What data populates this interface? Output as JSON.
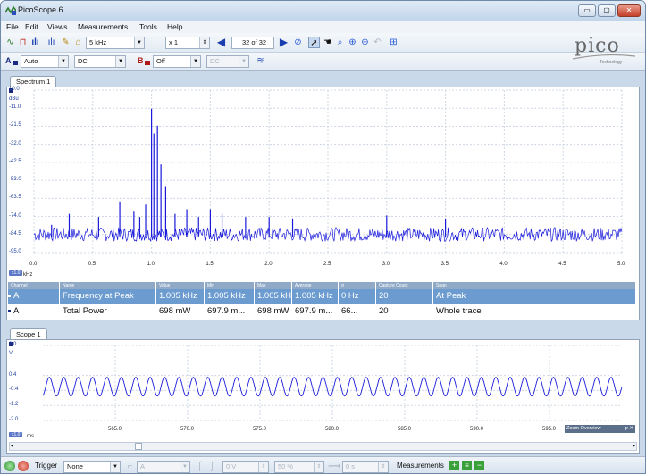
{
  "window": {
    "title": "PicoScope 6",
    "controls": [
      "▭",
      "▢",
      "✕"
    ]
  },
  "menu": [
    "File",
    "Edit",
    "Views",
    "Measurements",
    "Tools",
    "Help"
  ],
  "toolbar": {
    "timebase": "5 kHz",
    "multiplier": "x 1",
    "capture_counter": "32 of 32"
  },
  "channels": {
    "a_label": "A",
    "a_range": "Auto",
    "a_coupling": "DC",
    "b_label": "B",
    "b_range": "Off",
    "b_coupling": "DC"
  },
  "logo": {
    "name": "pico",
    "tagline": "Technology"
  },
  "spectrum": {
    "tab": "Spectrum 1",
    "unit": "dBu",
    "y_ticks": [
      "10.0",
      "-11.0",
      "-21.5",
      "-32.0",
      "-42.5",
      "-53.0",
      "-63.5",
      "-74.0",
      "-84.5",
      "-95.0"
    ],
    "x_ticks": [
      "0.0",
      "0.5",
      "1.0",
      "1.5",
      "2.0",
      "2.5",
      "3.0",
      "3.5",
      "4.0",
      "4.5",
      "5.0"
    ],
    "x_unit": "kHz",
    "zoom": "x1.0"
  },
  "chart_data": [
    {
      "type": "line",
      "title": "Spectrum 1",
      "xlabel": "kHz",
      "ylabel": "dBu",
      "xlim": [
        0,
        5.0
      ],
      "ylim": [
        -95.0,
        10.0
      ],
      "series": [
        {
          "name": "A",
          "peaks": [
            {
              "x": 0.15,
              "y": -77
            },
            {
              "x": 0.3,
              "y": -70
            },
            {
              "x": 0.55,
              "y": -72
            },
            {
              "x": 0.73,
              "y": -62
            },
            {
              "x": 0.85,
              "y": -68
            },
            {
              "x": 0.9,
              "y": -72
            },
            {
              "x": 0.95,
              "y": -64
            },
            {
              "x": 1.0,
              "y": -2
            },
            {
              "x": 1.02,
              "y": -18
            },
            {
              "x": 1.05,
              "y": -13
            },
            {
              "x": 1.08,
              "y": -38
            },
            {
              "x": 1.12,
              "y": -52
            },
            {
              "x": 1.2,
              "y": -70
            },
            {
              "x": 1.3,
              "y": -67
            },
            {
              "x": 1.4,
              "y": -72
            },
            {
              "x": 1.5,
              "y": -67
            },
            {
              "x": 1.6,
              "y": -70
            },
            {
              "x": 1.8,
              "y": -72
            },
            {
              "x": 2.0,
              "y": -72
            },
            {
              "x": 2.2,
              "y": -73
            },
            {
              "x": 3.0,
              "y": -71
            },
            {
              "x": 3.5,
              "y": -73
            }
          ],
          "noise_floor": -85
        }
      ]
    },
    {
      "type": "line",
      "title": "Scope 1",
      "xlabel": "ms",
      "ylabel": "V",
      "xlim": [
        560.0,
        600.0
      ],
      "ylim": [
        -2.0,
        2.0
      ],
      "series": [
        {
          "name": "A",
          "frequency_khz": 1.005,
          "amplitude_v": 0.5,
          "offset_v": -0.2
        }
      ]
    }
  ],
  "measurements": {
    "headers": [
      "Channel",
      "Name",
      "Value",
      "Min",
      "Max",
      "Average",
      "σ",
      "Capture Count",
      "Span"
    ],
    "rows": [
      [
        "A",
        "Frequency at Peak",
        "1.005 kHz",
        "1.005 kHz",
        "1.005 kHz",
        "1.005 kHz",
        "0 Hz",
        "20",
        "At Peak"
      ],
      [
        "A",
        "Total Power",
        "698 mW",
        "697.9 m...",
        "698 mW",
        "697.9 m...",
        "66...",
        "20",
        "Whole trace"
      ]
    ]
  },
  "scope": {
    "tab": "Scope 1",
    "unit": "V",
    "y_ticks": [
      "2.0",
      "0.4",
      "-0.4",
      "-1.2",
      "-2.0"
    ],
    "x_ticks": [
      "565.0",
      "570.0",
      "575.0",
      "580.0",
      "585.0",
      "590.0",
      "595.0"
    ],
    "x_unit": "ms",
    "zoom": "x1.0",
    "zoom_overview": "Zoom Overview"
  },
  "statusbar": {
    "trigger_label": "Trigger",
    "trigger_mode": "None",
    "trigger_source": "A",
    "trigger_level": "0 V",
    "trigger_pre": "50 %",
    "trigger_delay": "0 s",
    "measurements_label": "Measurements"
  },
  "colors": {
    "trace": "#1a1adb",
    "selected_row": "#6b9bcf",
    "header_row": "#8fa9c6"
  }
}
